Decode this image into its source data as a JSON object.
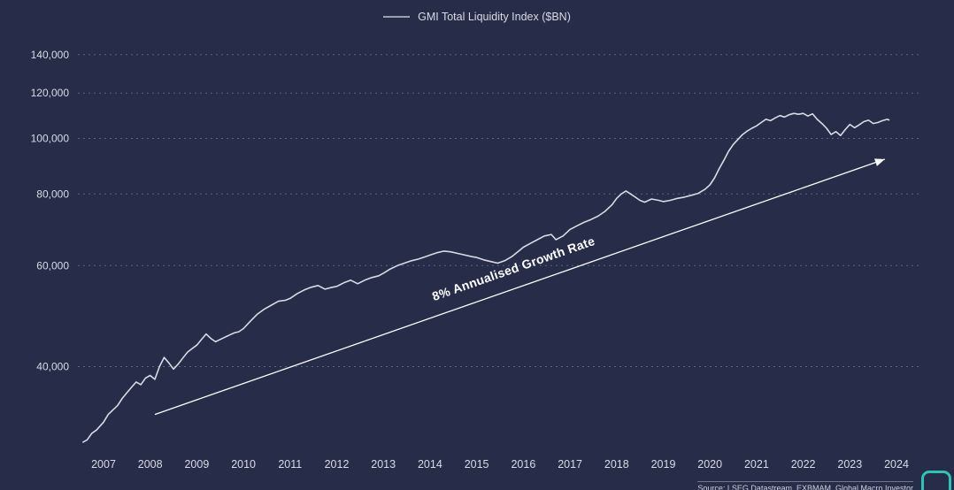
{
  "legend": {
    "label": "GMI Total Liquidity Index ($BN)"
  },
  "source": {
    "text": "Source: LSEG Datastream,  EXBMAM, Global Macro Investor"
  },
  "colors": {
    "background": "#272c49",
    "line": "#d9dbe3",
    "grid": "#6f7591",
    "text": "#d9dbe4",
    "trend": "#ffffff",
    "logo": "#2fc3b8"
  },
  "chart_data": {
    "type": "line",
    "title": "GMI Total Liquidity Index ($BN)",
    "xlabel": "",
    "ylabel": "",
    "y_scale": "log",
    "grid": "horizontal-dashed",
    "legend_position": "top-center",
    "x_domain": [
      2006.45,
      2024.55
    ],
    "y_domain": [
      29000,
      146000
    ],
    "x_ticks": [
      2007,
      2008,
      2009,
      2010,
      2011,
      2012,
      2013,
      2014,
      2015,
      2016,
      2017,
      2018,
      2019,
      2020,
      2021,
      2022,
      2023,
      2024
    ],
    "y_ticks": [
      40000,
      60000,
      80000,
      100000,
      120000,
      140000
    ],
    "y_tick_labels": [
      "40,000",
      "60,000",
      "80,000",
      "100,000",
      "120,000",
      "140,000"
    ],
    "annotation": {
      "label": "8% Annualised Growth Rate",
      "line": {
        "x1": 2008.1,
        "y1": 33000,
        "x2": 2023.75,
        "y2": 92000
      }
    },
    "series": [
      {
        "name": "GMI Total Liquidity Index ($BN)",
        "points": [
          [
            2006.55,
            29500
          ],
          [
            2006.65,
            29800
          ],
          [
            2006.75,
            30600
          ],
          [
            2006.85,
            31000
          ],
          [
            2007.0,
            32000
          ],
          [
            2007.1,
            33000
          ],
          [
            2007.2,
            33600
          ],
          [
            2007.3,
            34200
          ],
          [
            2007.4,
            35200
          ],
          [
            2007.5,
            36000
          ],
          [
            2007.6,
            36800
          ],
          [
            2007.7,
            37600
          ],
          [
            2007.8,
            37200
          ],
          [
            2007.9,
            38200
          ],
          [
            2008.0,
            38600
          ],
          [
            2008.1,
            38000
          ],
          [
            2008.2,
            40000
          ],
          [
            2008.3,
            41500
          ],
          [
            2008.4,
            40600
          ],
          [
            2008.5,
            39600
          ],
          [
            2008.6,
            40400
          ],
          [
            2008.7,
            41400
          ],
          [
            2008.8,
            42400
          ],
          [
            2008.9,
            43000
          ],
          [
            2009.0,
            43600
          ],
          [
            2009.1,
            44600
          ],
          [
            2009.2,
            45600
          ],
          [
            2009.3,
            44800
          ],
          [
            2009.4,
            44200
          ],
          [
            2009.5,
            44600
          ],
          [
            2009.6,
            45000
          ],
          [
            2009.7,
            45400
          ],
          [
            2009.8,
            45800
          ],
          [
            2009.9,
            46000
          ],
          [
            2010.0,
            46600
          ],
          [
            2010.15,
            48000
          ],
          [
            2010.3,
            49400
          ],
          [
            2010.45,
            50400
          ],
          [
            2010.6,
            51200
          ],
          [
            2010.75,
            52000
          ],
          [
            2010.9,
            52200
          ],
          [
            2011.0,
            52600
          ],
          [
            2011.15,
            53600
          ],
          [
            2011.3,
            54400
          ],
          [
            2011.45,
            55000
          ],
          [
            2011.6,
            55400
          ],
          [
            2011.75,
            54600
          ],
          [
            2011.9,
            55000
          ],
          [
            2012.0,
            55200
          ],
          [
            2012.15,
            56000
          ],
          [
            2012.3,
            56600
          ],
          [
            2012.45,
            55800
          ],
          [
            2012.6,
            56600
          ],
          [
            2012.75,
            57200
          ],
          [
            2012.9,
            57600
          ],
          [
            2013.0,
            58200
          ],
          [
            2013.15,
            59200
          ],
          [
            2013.3,
            60000
          ],
          [
            2013.45,
            60600
          ],
          [
            2013.6,
            61200
          ],
          [
            2013.75,
            61600
          ],
          [
            2013.9,
            62200
          ],
          [
            2014.0,
            62600
          ],
          [
            2014.15,
            63200
          ],
          [
            2014.3,
            63600
          ],
          [
            2014.45,
            63400
          ],
          [
            2014.6,
            63000
          ],
          [
            2014.75,
            62600
          ],
          [
            2014.9,
            62200
          ],
          [
            2015.0,
            62000
          ],
          [
            2015.15,
            61400
          ],
          [
            2015.3,
            61000
          ],
          [
            2015.45,
            60600
          ],
          [
            2015.6,
            61200
          ],
          [
            2015.75,
            62200
          ],
          [
            2015.9,
            63600
          ],
          [
            2016.0,
            64600
          ],
          [
            2016.15,
            65600
          ],
          [
            2016.3,
            66600
          ],
          [
            2016.45,
            67600
          ],
          [
            2016.6,
            68000
          ],
          [
            2016.7,
            66600
          ],
          [
            2016.85,
            67600
          ],
          [
            2017.0,
            69400
          ],
          [
            2017.15,
            70400
          ],
          [
            2017.3,
            71400
          ],
          [
            2017.45,
            72200
          ],
          [
            2017.6,
            73200
          ],
          [
            2017.75,
            74600
          ],
          [
            2017.9,
            76600
          ],
          [
            2018.0,
            78600
          ],
          [
            2018.1,
            80000
          ],
          [
            2018.2,
            81000
          ],
          [
            2018.3,
            80000
          ],
          [
            2018.4,
            79000
          ],
          [
            2018.5,
            78000
          ],
          [
            2018.6,
            77400
          ],
          [
            2018.75,
            78400
          ],
          [
            2018.9,
            78000
          ],
          [
            2019.0,
            77600
          ],
          [
            2019.15,
            78000
          ],
          [
            2019.3,
            78600
          ],
          [
            2019.45,
            79000
          ],
          [
            2019.6,
            79600
          ],
          [
            2019.75,
            80200
          ],
          [
            2019.9,
            81600
          ],
          [
            2020.0,
            83000
          ],
          [
            2020.1,
            85400
          ],
          [
            2020.2,
            88600
          ],
          [
            2020.3,
            91600
          ],
          [
            2020.4,
            95000
          ],
          [
            2020.5,
            97600
          ],
          [
            2020.6,
            99600
          ],
          [
            2020.7,
            101600
          ],
          [
            2020.8,
            103000
          ],
          [
            2020.9,
            104200
          ],
          [
            2021.0,
            105200
          ],
          [
            2021.1,
            106600
          ],
          [
            2021.2,
            108000
          ],
          [
            2021.3,
            107400
          ],
          [
            2021.4,
            108600
          ],
          [
            2021.5,
            109600
          ],
          [
            2021.6,
            109000
          ],
          [
            2021.7,
            110000
          ],
          [
            2021.8,
            110600
          ],
          [
            2021.9,
            110200
          ],
          [
            2022.0,
            110600
          ],
          [
            2022.1,
            109400
          ],
          [
            2022.2,
            110400
          ],
          [
            2022.3,
            108000
          ],
          [
            2022.4,
            106200
          ],
          [
            2022.5,
            104200
          ],
          [
            2022.6,
            101600
          ],
          [
            2022.7,
            102800
          ],
          [
            2022.8,
            101200
          ],
          [
            2022.9,
            103600
          ],
          [
            2023.0,
            105800
          ],
          [
            2023.1,
            104400
          ],
          [
            2023.2,
            105600
          ],
          [
            2023.3,
            107000
          ],
          [
            2023.4,
            107600
          ],
          [
            2023.5,
            106200
          ],
          [
            2023.6,
            106600
          ],
          [
            2023.7,
            107400
          ],
          [
            2023.8,
            108000
          ],
          [
            2023.85,
            107600
          ]
        ]
      }
    ]
  }
}
